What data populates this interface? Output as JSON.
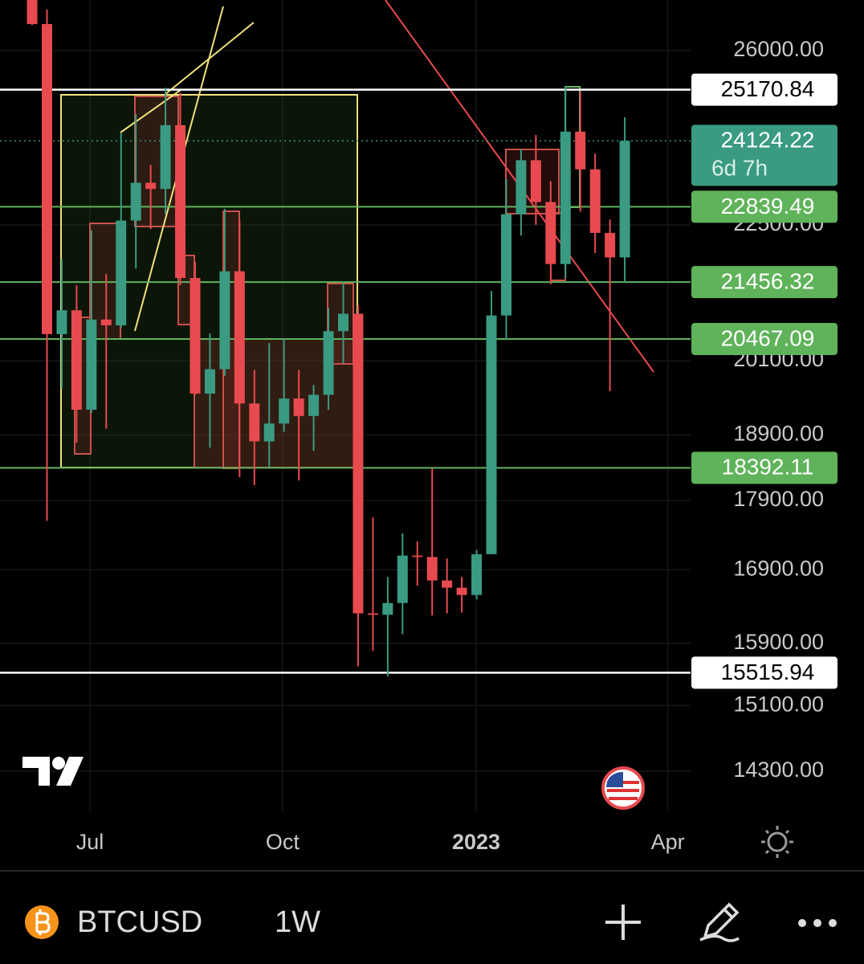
{
  "chart_data": {
    "type": "candlestick",
    "log_scale": true,
    "grid": true,
    "x": [
      0,
      1,
      2,
      3,
      4,
      5,
      6,
      7,
      8,
      9,
      10,
      11,
      12,
      13,
      14,
      15,
      16,
      17,
      18,
      19,
      20,
      21,
      22,
      23,
      24,
      25,
      26,
      27,
      28,
      29,
      30,
      31,
      32,
      33,
      34,
      35,
      36,
      37,
      38,
      39,
      40
    ],
    "open": [
      31370,
      26580,
      20550,
      20960,
      19300,
      20800,
      20700,
      22580,
      23300,
      23180,
      24440,
      21530,
      19560,
      19960,
      21650,
      19400,
      18800,
      19080,
      19480,
      19200,
      19540,
      20600,
      20900,
      16300,
      16280,
      16440,
      17100,
      17080,
      16750,
      16650,
      16550,
      17120,
      20870,
      22700,
      23740,
      22930,
      21780,
      24310,
      23560,
      22350,
      21900
    ],
    "high": [
      31700,
      26900,
      21870,
      21400,
      22400,
      21600,
      24280,
      24670,
      23650,
      25210,
      25100,
      21820,
      20560,
      22800,
      22600,
      19950,
      20400,
      20480,
      19950,
      19700,
      21000,
      21450,
      21050,
      17650,
      16800,
      17420,
      17300,
      18380,
      17060,
      16800,
      17180,
      21300,
      23370,
      23960,
      24240,
      23330,
      25250,
      25130,
      23870,
      22600,
      24600
    ],
    "low": [
      26560,
      17600,
      19640,
      18780,
      19250,
      19000,
      20650,
      21700,
      22420,
      22700,
      21400,
      19540,
      18700,
      19850,
      18250,
      18130,
      18400,
      18950,
      18200,
      18650,
      19300,
      20050,
      15600,
      15800,
      15470,
      16020,
      16680,
      16270,
      16300,
      16310,
      16490,
      17120,
      20450,
      22300,
      22500,
      21420,
      21530,
      22750,
      21980,
      19600,
      21460
    ],
    "close": [
      26580,
      20550,
      20960,
      19300,
      20800,
      20700,
      22580,
      23300,
      23180,
      24440,
      21530,
      19560,
      19960,
      21650,
      19400,
      18800,
      19080,
      19480,
      19200,
      19540,
      20600,
      20900,
      16300,
      16280,
      16440,
      17100,
      17080,
      16750,
      16650,
      16550,
      17120,
      20870,
      22700,
      23740,
      22930,
      21780,
      24310,
      23560,
      22350,
      21900,
      24124.22
    ],
    "up_color": "#3a9a82",
    "down_color": "#e84a4f",
    "xlim": [
      -2.17,
      44.44
    ],
    "ylim": [
      13830,
      27115
    ],
    "xticks": [
      {
        "value": 3.9,
        "label": "Jul"
      },
      {
        "value": 16.9,
        "label": "Oct"
      },
      {
        "value": 29.97,
        "label": "2023"
      },
      {
        "value": 42.9,
        "label": "Apr"
      }
    ],
    "yticks": [
      {
        "value": 26000,
        "label": "26000.00"
      },
      {
        "value": 22500,
        "label": "22500.00"
      },
      {
        "value": 20100,
        "label": "20100.00"
      },
      {
        "value": 18900,
        "label": "18900.00"
      },
      {
        "value": 17900,
        "label": "17900.00"
      },
      {
        "value": 16900,
        "label": "16900.00"
      },
      {
        "value": 15900,
        "label": "15900.00"
      },
      {
        "value": 15100,
        "label": "15100.00"
      },
      {
        "value": 14300,
        "label": "14300.00"
      }
    ],
    "levels": [
      {
        "value": 25170.84,
        "label": "25170.84",
        "color": "#ffffff"
      },
      {
        "value": 22839.49,
        "label": "22839.49",
        "color": "#5fb35a"
      },
      {
        "value": 21456.32,
        "label": "21456.32",
        "color": "#5fb35a"
      },
      {
        "value": 20467.09,
        "label": "20467.09",
        "color": "#5fb35a"
      },
      {
        "value": 18392.11,
        "label": "18392.11",
        "color": "#5fb35a"
      },
      {
        "value": 15515.94,
        "label": "15515.94",
        "color": "#ffffff"
      }
    ],
    "last_price": {
      "value": 24124.22,
      "label": "24124.22",
      "countdown": "6d 7h",
      "color": "#3a9a82"
    }
  },
  "toolbar": {
    "symbol": "BTCUSD",
    "interval": "1W"
  }
}
